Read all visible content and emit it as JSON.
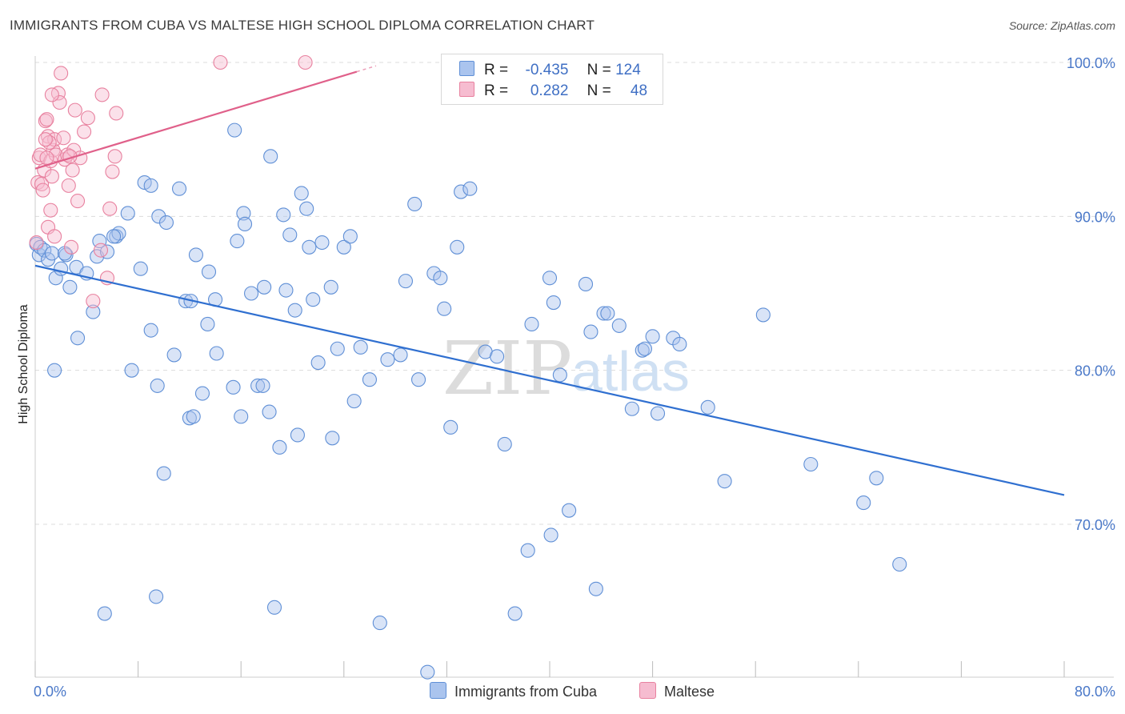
{
  "title": "IMMIGRANTS FROM CUBA VS MALTESE HIGH SCHOOL DIPLOMA CORRELATION CHART",
  "source": "Source: ZipAtlas.com",
  "watermark": {
    "zip": "ZIP",
    "atlas": "atlas"
  },
  "legend": {
    "rows": [
      {
        "r_label": "R =",
        "r_value": "-0.435",
        "n_label": "N =",
        "n_value": "124"
      },
      {
        "r_label": "R =",
        "r_value": "0.282",
        "n_label": "N =",
        "n_value": "48"
      }
    ]
  },
  "bottom_legend": [
    "Immigrants from Cuba",
    "Maltese"
  ],
  "colors": {
    "blue_fill": "#aac4ee",
    "blue_stroke": "#5f8fd6",
    "blue_line": "#2f6fd0",
    "pink_fill": "#f6bcd0",
    "pink_stroke": "#e8819f",
    "pink_line": "#e0608a",
    "grid": "#dcdcdc",
    "tick_text": "#4a78c8"
  },
  "chart_data": {
    "type": "scatter",
    "title": "IMMIGRANTS FROM CUBA VS MALTESE HIGH SCHOOL DIPLOMA CORRELATION CHART",
    "xlabel": "",
    "ylabel": "High School Diploma",
    "xlim": [
      0,
      80
    ],
    "ylim": [
      60,
      102
    ],
    "x_tick_labels": [
      "0.0%",
      "80.0%"
    ],
    "y_ticks": [
      70,
      80,
      90,
      100
    ],
    "y_tick_labels": [
      "70.0%",
      "80.0%",
      "90.0%",
      "100.0%"
    ],
    "grid": "horizontal dashed",
    "legend_position": "top-center",
    "series": [
      {
        "name": "Immigrants from Cuba",
        "r": -0.435,
        "n": 124,
        "trend": {
          "x": [
            0,
            80
          ],
          "y": [
            86.8,
            71.9
          ]
        },
        "points": [
          [
            0.1,
            88.2
          ],
          [
            0.3,
            87.5
          ],
          [
            0.4,
            88.0
          ],
          [
            0.7,
            87.8
          ],
          [
            1.0,
            87.2
          ],
          [
            1.3,
            87.6
          ],
          [
            1.6,
            86.0
          ],
          [
            2.0,
            86.6
          ],
          [
            2.4,
            87.5
          ],
          [
            2.7,
            85.4
          ],
          [
            3.2,
            86.7
          ],
          [
            4.0,
            86.3
          ],
          [
            3.3,
            82.1
          ],
          [
            4.5,
            83.8
          ],
          [
            5.0,
            88.4
          ],
          [
            4.8,
            87.4
          ],
          [
            5.6,
            87.7
          ],
          [
            6.3,
            88.7
          ],
          [
            6.5,
            88.9
          ],
          [
            7.5,
            80.0
          ],
          [
            9.5,
            79.0
          ],
          [
            8.5,
            92.2
          ],
          [
            9.0,
            92.0
          ],
          [
            7.2,
            90.2
          ],
          [
            9.6,
            90.0
          ],
          [
            10.2,
            89.6
          ],
          [
            8.2,
            86.6
          ],
          [
            9.0,
            82.6
          ],
          [
            11.2,
            91.8
          ],
          [
            10.8,
            81.0
          ],
          [
            11.7,
            84.5
          ],
          [
            12.1,
            84.5
          ],
          [
            12.5,
            87.5
          ],
          [
            13.0,
            78.5
          ],
          [
            12.0,
            76.9
          ],
          [
            12.3,
            77.0
          ],
          [
            13.4,
            83.0
          ],
          [
            14.0,
            84.6
          ],
          [
            13.5,
            86.4
          ],
          [
            14.1,
            81.1
          ],
          [
            15.4,
            78.9
          ],
          [
            15.5,
            95.6
          ],
          [
            15.7,
            88.4
          ],
          [
            16.2,
            90.2
          ],
          [
            16.3,
            89.5
          ],
          [
            16.0,
            77.0
          ],
          [
            16.8,
            85.0
          ],
          [
            17.3,
            79.0
          ],
          [
            17.7,
            79.0
          ],
          [
            17.8,
            85.4
          ],
          [
            18.2,
            77.3
          ],
          [
            18.3,
            93.9
          ],
          [
            18.6,
            64.6
          ],
          [
            19.0,
            75.0
          ],
          [
            19.3,
            90.1
          ],
          [
            19.5,
            85.2
          ],
          [
            19.8,
            88.8
          ],
          [
            20.2,
            83.9
          ],
          [
            20.4,
            75.8
          ],
          [
            20.7,
            91.5
          ],
          [
            21.1,
            90.5
          ],
          [
            21.3,
            88.0
          ],
          [
            21.6,
            84.6
          ],
          [
            22.0,
            80.5
          ],
          [
            22.3,
            88.3
          ],
          [
            23.0,
            85.4
          ],
          [
            23.1,
            75.6
          ],
          [
            23.5,
            81.4
          ],
          [
            24.0,
            88.0
          ],
          [
            24.5,
            88.7
          ],
          [
            24.8,
            78.0
          ],
          [
            25.3,
            81.5
          ],
          [
            26.0,
            79.4
          ],
          [
            26.8,
            63.6
          ],
          [
            27.4,
            80.7
          ],
          [
            28.4,
            81.0
          ],
          [
            28.8,
            85.8
          ],
          [
            29.5,
            90.8
          ],
          [
            29.8,
            79.4
          ],
          [
            30.5,
            60.4
          ],
          [
            31.0,
            86.3
          ],
          [
            31.5,
            86.0
          ],
          [
            31.8,
            84.0
          ],
          [
            32.3,
            76.3
          ],
          [
            32.8,
            88.0
          ],
          [
            33.1,
            91.6
          ],
          [
            33.8,
            91.8
          ],
          [
            35.0,
            81.2
          ],
          [
            35.9,
            80.9
          ],
          [
            36.5,
            75.2
          ],
          [
            37.3,
            64.2
          ],
          [
            38.3,
            68.3
          ],
          [
            38.6,
            83.0
          ],
          [
            40.0,
            86.0
          ],
          [
            40.1,
            69.3
          ],
          [
            40.3,
            84.4
          ],
          [
            40.8,
            79.7
          ],
          [
            41.5,
            70.9
          ],
          [
            42.8,
            85.6
          ],
          [
            43.2,
            82.5
          ],
          [
            43.6,
            65.8
          ],
          [
            44.2,
            83.7
          ],
          [
            44.5,
            83.7
          ],
          [
            45.4,
            82.9
          ],
          [
            46.4,
            77.5
          ],
          [
            47.2,
            81.3
          ],
          [
            47.4,
            81.4
          ],
          [
            48.0,
            82.2
          ],
          [
            48.4,
            77.2
          ],
          [
            49.6,
            82.1
          ],
          [
            50.1,
            81.7
          ],
          [
            52.3,
            77.6
          ],
          [
            53.6,
            72.8
          ],
          [
            56.6,
            83.6
          ],
          [
            60.3,
            73.9
          ],
          [
            64.4,
            71.4
          ],
          [
            65.4,
            73.0
          ],
          [
            67.2,
            67.4
          ],
          [
            5.4,
            64.2
          ],
          [
            9.4,
            65.3
          ],
          [
            1.5,
            80.0
          ],
          [
            2.3,
            87.6
          ],
          [
            6.1,
            88.7
          ],
          [
            10.0,
            73.3
          ]
        ]
      },
      {
        "name": "Maltese",
        "r": 0.282,
        "n": 48,
        "trend": {
          "x": [
            0,
            25
          ],
          "y": [
            93.1,
            99.4
          ]
        },
        "points": [
          [
            0.1,
            88.3
          ],
          [
            0.2,
            92.2
          ],
          [
            0.3,
            93.8
          ],
          [
            0.4,
            94.0
          ],
          [
            0.5,
            92.1
          ],
          [
            0.6,
            91.7
          ],
          [
            0.7,
            93.0
          ],
          [
            0.8,
            96.2
          ],
          [
            0.9,
            96.3
          ],
          [
            1.0,
            95.2
          ],
          [
            1.2,
            93.6
          ],
          [
            1.3,
            92.6
          ],
          [
            1.4,
            94.3
          ],
          [
            1.5,
            95.0
          ],
          [
            1.6,
            94.0
          ],
          [
            1.8,
            98.0
          ],
          [
            1.9,
            97.4
          ],
          [
            2.0,
            99.3
          ],
          [
            2.2,
            95.1
          ],
          [
            2.3,
            93.7
          ],
          [
            2.5,
            94.0
          ],
          [
            2.6,
            92.0
          ],
          [
            2.8,
            88.0
          ],
          [
            2.9,
            93.0
          ],
          [
            3.0,
            94.3
          ],
          [
            3.1,
            96.9
          ],
          [
            3.3,
            91.0
          ],
          [
            3.5,
            93.8
          ],
          [
            3.8,
            95.5
          ],
          [
            4.1,
            96.4
          ],
          [
            4.5,
            84.5
          ],
          [
            5.1,
            87.8
          ],
          [
            5.2,
            97.9
          ],
          [
            5.6,
            86.0
          ],
          [
            5.8,
            90.5
          ],
          [
            6.0,
            92.9
          ],
          [
            6.2,
            93.9
          ],
          [
            6.3,
            96.7
          ],
          [
            1.1,
            94.8
          ],
          [
            1.2,
            90.4
          ],
          [
            1.0,
            89.3
          ],
          [
            0.8,
            95.0
          ],
          [
            1.5,
            88.7
          ],
          [
            14.4,
            100.0
          ],
          [
            21.0,
            100.0
          ],
          [
            1.3,
            97.9
          ],
          [
            2.7,
            93.9
          ],
          [
            0.9,
            93.8
          ]
        ]
      }
    ]
  }
}
